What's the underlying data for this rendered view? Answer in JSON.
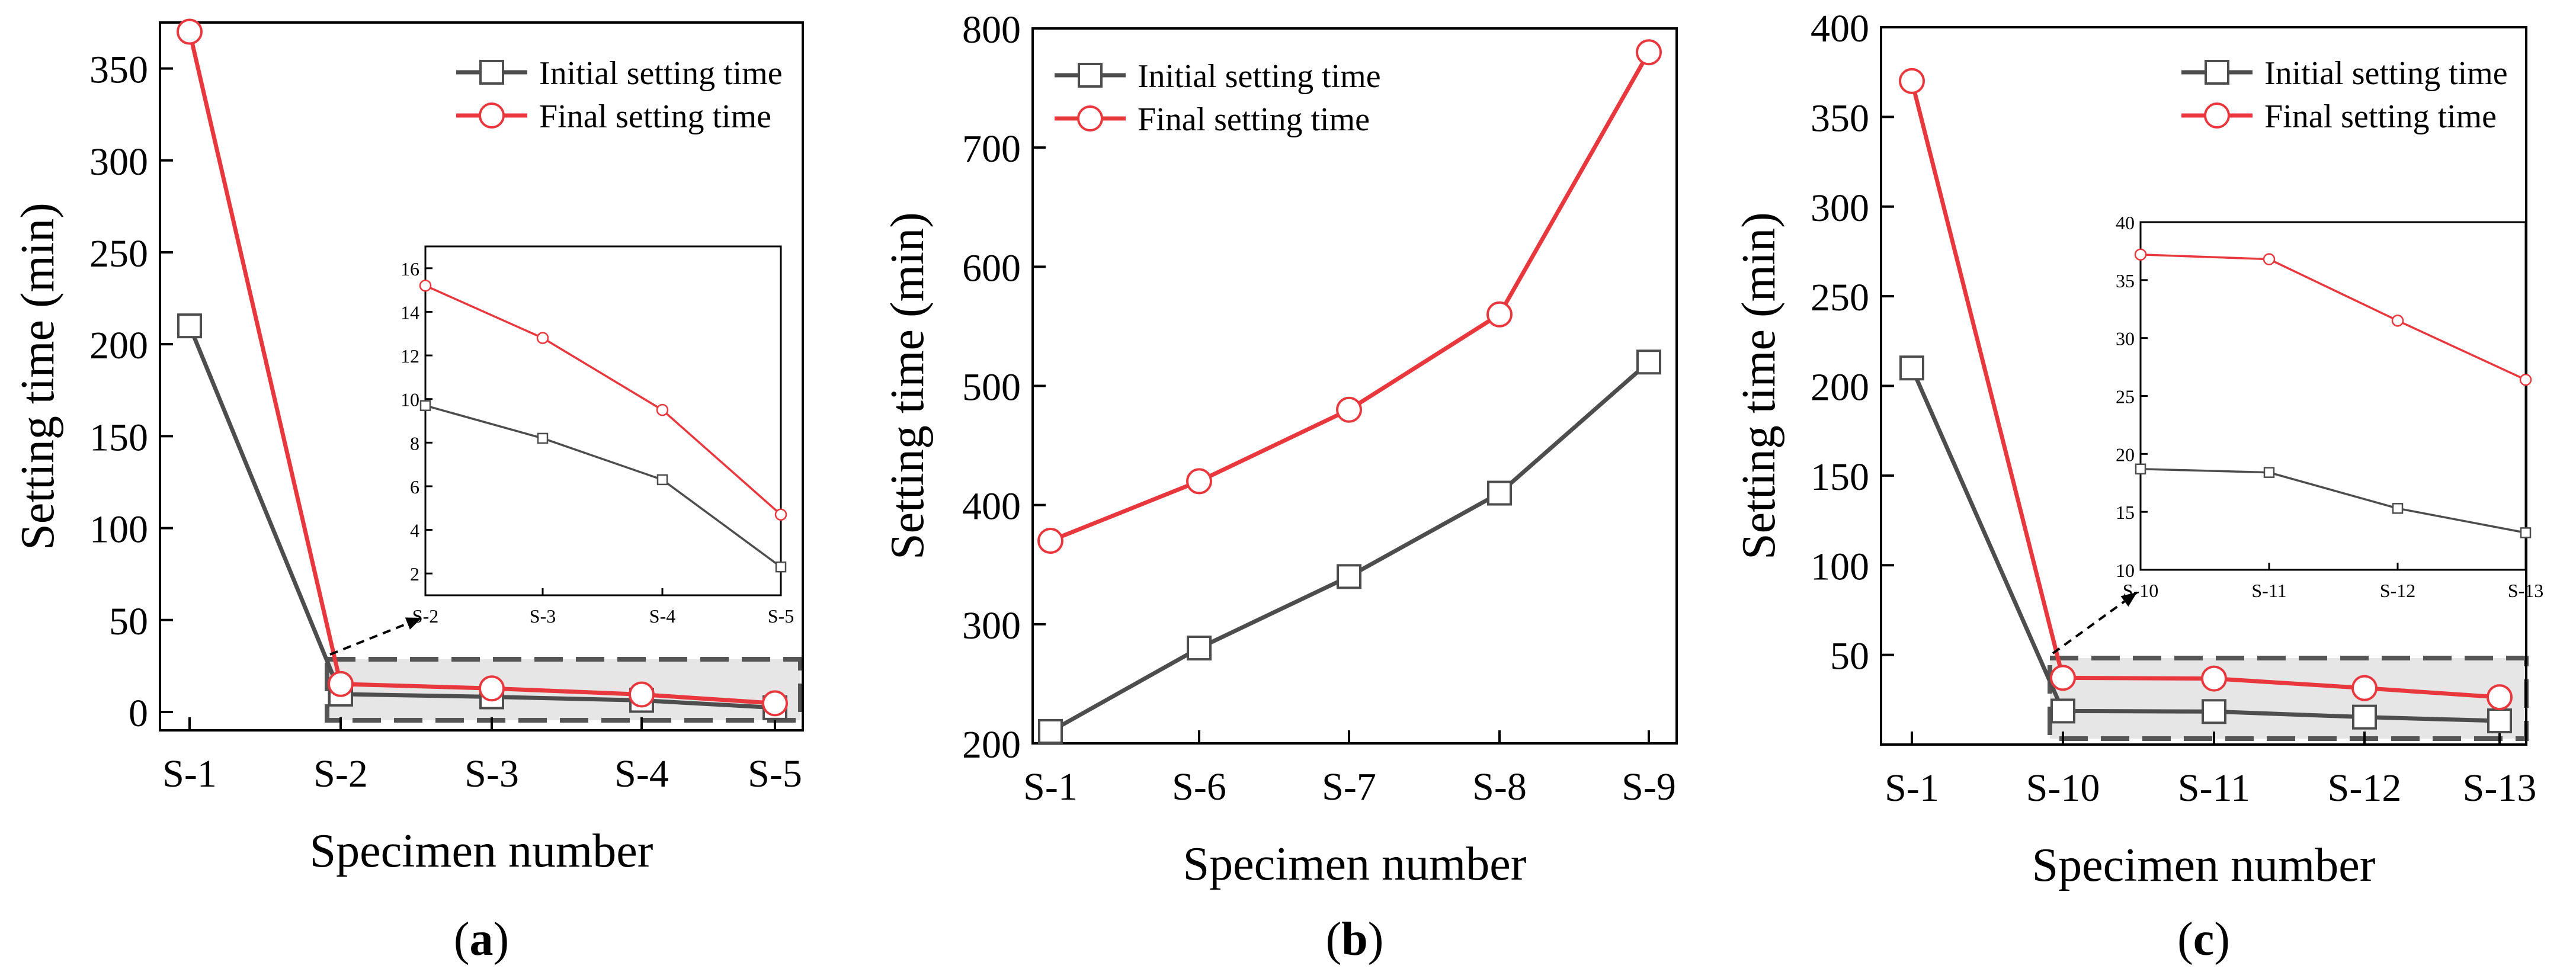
{
  "colors": {
    "initial": "#4d4d4d",
    "final": "#e8373d",
    "inset_bg": "#e6e6e6",
    "frame": "#000000"
  },
  "chart_data": [
    {
      "id": "a",
      "type": "line",
      "panel_label": "(a)",
      "panel_letter": "a",
      "xlabel": "Specimen number",
      "ylabel": "Setting time (min)",
      "categories": [
        "S-1",
        "S-2",
        "S-3",
        "S-4",
        "S-5"
      ],
      "ylim": [
        -10,
        375
      ],
      "yticks": [
        0,
        50,
        100,
        150,
        200,
        250,
        300,
        350
      ],
      "series": [
        {
          "name": "Initial setting time",
          "values": [
            210,
            9.7,
            8.2,
            6.3,
            2.3
          ]
        },
        {
          "name": "Final setting time",
          "values": [
            370,
            15.2,
            12.8,
            9.5,
            4.7
          ]
        }
      ],
      "legend": "top-right",
      "inset": {
        "categories": [
          "S-2",
          "S-3",
          "S-4",
          "S-5"
        ],
        "ylim": [
          1,
          17
        ],
        "yticks": [
          2,
          4,
          6,
          8,
          10,
          12,
          14,
          16
        ],
        "series": [
          {
            "name": "Initial setting time",
            "values": [
              9.7,
              8.2,
              6.3,
              2.3
            ]
          },
          {
            "name": "Final setting time",
            "values": [
              15.2,
              12.8,
              9.5,
              4.7
            ]
          }
        ]
      }
    },
    {
      "id": "b",
      "type": "line",
      "panel_label": "(b)",
      "panel_letter": "b",
      "xlabel": "Specimen number",
      "ylabel": "Setting time (min)",
      "categories": [
        "S-1",
        "S-6",
        "S-7",
        "S-8",
        "S-9"
      ],
      "ylim": [
        200,
        800
      ],
      "yticks": [
        200,
        300,
        400,
        500,
        600,
        700,
        800
      ],
      "series": [
        {
          "name": "Initial setting time",
          "values": [
            210,
            280,
            340,
            410,
            520
          ]
        },
        {
          "name": "Final setting time",
          "values": [
            370,
            420,
            480,
            560,
            780
          ]
        }
      ],
      "legend": "top-left"
    },
    {
      "id": "c",
      "type": "line",
      "panel_label": "(c)",
      "panel_letter": "c",
      "xlabel": "Specimen number",
      "ylabel": "Setting time (min)",
      "categories": [
        "S-1",
        "S-10",
        "S-11",
        "S-12",
        "S-13"
      ],
      "ylim": [
        0,
        400
      ],
      "yticks": [
        50,
        100,
        150,
        200,
        250,
        300,
        350,
        400
      ],
      "series": [
        {
          "name": "Initial setting time",
          "values": [
            210,
            18.7,
            18.4,
            15.3,
            13.2
          ]
        },
        {
          "name": "Final setting time",
          "values": [
            370,
            37.2,
            36.8,
            31.5,
            26.4
          ]
        }
      ],
      "legend": "top-right",
      "inset": {
        "categories": [
          "S-10",
          "S-11",
          "S-12",
          "S-13"
        ],
        "ylim": [
          10,
          40
        ],
        "yticks": [
          10,
          15,
          20,
          25,
          30,
          35,
          40
        ],
        "series": [
          {
            "name": "Initial setting time",
            "values": [
              18.7,
              18.4,
              15.3,
              13.2
            ]
          },
          {
            "name": "Final setting time",
            "values": [
              37.2,
              36.8,
              31.5,
              26.4
            ]
          }
        ]
      }
    }
  ]
}
